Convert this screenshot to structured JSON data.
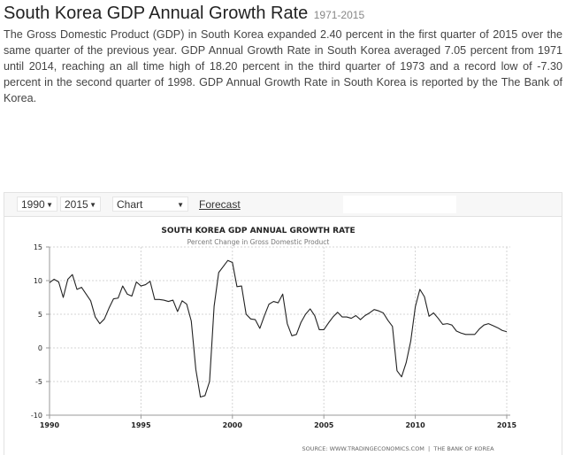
{
  "header": {
    "title": "South Korea GDP Annual Growth Rate",
    "years": "1971-2015"
  },
  "description": "The Gross Domestic Product (GDP) in South Korea expanded 2.40 percent in the first quarter of 2015 over the same quarter of the previous year. GDP Annual Growth Rate in South Korea averaged 7.05 percent from 1971 until 2014, reaching an all time high of 18.20 percent in the third quarter of 1973 and a record low of -7.30 percent in the second quarter of 1998. GDP Annual Growth Rate in South Korea is reported by the The Bank of Korea.",
  "toolbar": {
    "start_year": "1990",
    "end_year": "2015",
    "chart_type": "Chart",
    "forecast_label": "Forecast",
    "dropdown_arrow": "▼"
  },
  "chart_data": {
    "type": "line",
    "title": "SOUTH KOREA GDP ANNUAL GROWTH RATE",
    "subtitle": "Percent Change in Gross Domestic Product",
    "source": "SOURCE: WWW.TRADINGECONOMICS.COM  |  THE BANK OF KOREA",
    "xlabel": "",
    "ylabel": "",
    "xlim": [
      1990,
      2015
    ],
    "ylim": [
      -10,
      15
    ],
    "x_ticks": [
      "1990",
      "1995",
      "2000",
      "2005",
      "2010",
      "2015"
    ],
    "y_ticks": [
      "15",
      "10",
      "5",
      "0",
      "-5",
      "-10"
    ],
    "grid": true,
    "legend": "none",
    "series": [
      {
        "name": "GDP Annual Growth Rate",
        "color": "#222222",
        "x_start": 1990.0,
        "x_step": 0.25,
        "values": [
          9.7,
          10.2,
          9.8,
          7.5,
          10.2,
          10.9,
          8.7,
          9.0,
          8.0,
          7.0,
          4.6,
          3.6,
          4.3,
          5.9,
          7.3,
          7.4,
          9.2,
          8.0,
          7.7,
          9.8,
          9.2,
          9.4,
          9.9,
          7.2,
          7.2,
          7.1,
          6.9,
          7.1,
          5.4,
          7.0,
          6.5,
          4.0,
          -3.2,
          -7.3,
          -7.1,
          -5.0,
          6.2,
          11.2,
          12.1,
          13.0,
          12.7,
          9.1,
          9.2,
          5.0,
          4.3,
          4.2,
          2.9,
          4.8,
          6.5,
          6.9,
          6.7,
          8.0,
          3.6,
          1.8,
          2.0,
          3.8,
          5.0,
          5.8,
          4.8,
          2.7,
          2.7,
          3.7,
          4.6,
          5.3,
          4.6,
          4.6,
          4.4,
          4.8,
          4.2,
          4.8,
          5.2,
          5.7,
          5.5,
          5.2,
          4.1,
          3.2,
          -3.4,
          -4.3,
          -2.2,
          1.0,
          6.1,
          8.7,
          7.6,
          4.7,
          5.2,
          4.4,
          3.5,
          3.6,
          3.4,
          2.5,
          2.2,
          2.0,
          2.0,
          2.0,
          2.8,
          3.4,
          3.6,
          3.3,
          3.0,
          2.6,
          2.4
        ]
      }
    ]
  }
}
